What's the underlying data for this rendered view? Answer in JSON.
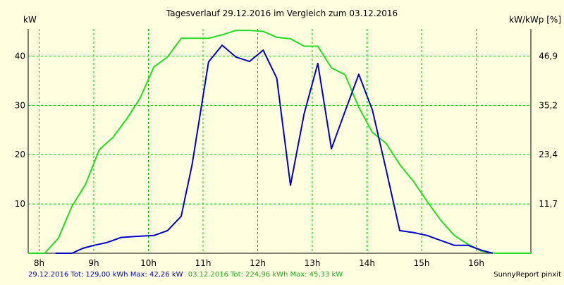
{
  "colors": {
    "background": "#ffffe0",
    "grid": "#00cc00",
    "axis": "#000000",
    "series_blue": "#0000cc",
    "series_green": "#22dd22"
  },
  "chart_data": {
    "type": "line",
    "title": "Tagesverlauf 29.12.2016 im Vergleich zum 03.12.2016",
    "ylabel_left": "kW",
    "ylabel_right": "kW/kWp [%]",
    "xlim": [
      7.8,
      17.0
    ],
    "ylim": [
      0,
      45.5
    ],
    "grid": true,
    "x_ticks": [
      {
        "value": 8,
        "label": "8h"
      },
      {
        "value": 9,
        "label": "9h"
      },
      {
        "value": 10,
        "label": "10h"
      },
      {
        "value": 11,
        "label": "11h"
      },
      {
        "value": 12,
        "label": "12h"
      },
      {
        "value": 13,
        "label": "13h"
      },
      {
        "value": 14,
        "label": "14h"
      },
      {
        "value": 15,
        "label": "15h"
      },
      {
        "value": 16,
        "label": "16h"
      }
    ],
    "y_ticks_left": [
      {
        "value": 10,
        "label": "10"
      },
      {
        "value": 20,
        "label": "20"
      },
      {
        "value": 30,
        "label": "30"
      },
      {
        "value": 40,
        "label": "40"
      }
    ],
    "y_ticks_right": [
      {
        "value": 10,
        "label": "11,7"
      },
      {
        "value": 20,
        "label": "23,4"
      },
      {
        "value": 30,
        "label": "35,2"
      },
      {
        "value": 40,
        "label": "46,9"
      }
    ],
    "series": [
      {
        "name": "29.12.2016",
        "color": "#0000cc",
        "x": [
          8.3,
          8.6,
          8.8,
          9.0,
          9.25,
          9.5,
          9.75,
          10.1,
          10.35,
          10.6,
          10.8,
          11.1,
          11.35,
          11.6,
          11.85,
          12.1,
          12.35,
          12.6,
          12.85,
          13.1,
          13.35,
          13.6,
          13.85,
          14.1,
          14.35,
          14.6,
          14.85,
          15.1,
          15.35,
          15.6,
          15.85,
          16.1,
          16.3
        ],
        "y": [
          0,
          0,
          1.0,
          1.6,
          2.2,
          3.2,
          3.4,
          3.6,
          4.6,
          7.5,
          18.0,
          38.8,
          42.2,
          39.8,
          38.9,
          41.2,
          35.5,
          13.8,
          28.3,
          38.5,
          21.2,
          28.8,
          36.3,
          29.0,
          17.0,
          4.6,
          4.2,
          3.6,
          2.6,
          1.6,
          1.6,
          0.6,
          0
        ]
      },
      {
        "name": "03.12.2016",
        "color": "#22dd22",
        "x": [
          7.8,
          8.1,
          8.35,
          8.6,
          8.85,
          9.1,
          9.35,
          9.6,
          9.85,
          10.1,
          10.35,
          10.6,
          10.85,
          11.1,
          11.35,
          11.6,
          11.85,
          12.1,
          12.35,
          12.6,
          12.85,
          13.1,
          13.35,
          13.6,
          13.85,
          14.1,
          14.35,
          14.6,
          14.85,
          15.1,
          15.35,
          15.6,
          15.85,
          16.1,
          16.35,
          17.0
        ],
        "y": [
          0,
          0,
          3.0,
          9.5,
          14.0,
          21.0,
          23.5,
          27.2,
          31.5,
          37.8,
          39.8,
          43.6,
          43.6,
          43.6,
          44.3,
          45.2,
          45.2,
          45.0,
          43.8,
          43.5,
          42.0,
          42.0,
          37.6,
          36.2,
          29.6,
          24.5,
          22.3,
          18.0,
          14.6,
          10.5,
          6.7,
          3.6,
          1.8,
          0.4,
          0,
          0
        ]
      }
    ],
    "footer": [
      {
        "text": "29.12.2016 Tot: 129,00 kWh Max: 42,26 kW",
        "color": "#0000cc"
      },
      {
        "text": "03.12.2016 Tot: 224,96 kWh Max: 45,33 kW",
        "color": "#22aa22"
      }
    ],
    "credit": "SunnyReport pinxit"
  }
}
